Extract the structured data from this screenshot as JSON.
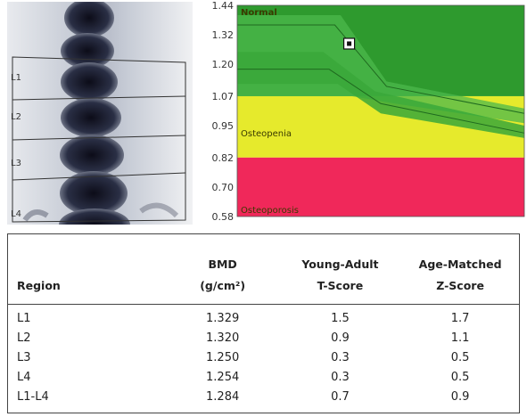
{
  "scan": {
    "vertebra_labels": [
      "L1",
      "L2",
      "L3",
      "L4"
    ]
  },
  "chart_data": {
    "type": "area",
    "title": "",
    "xlabel": "",
    "ylabel": "",
    "y_ticks": [
      "1.44",
      "1.32",
      "1.20",
      "1.07",
      "0.95",
      "0.82",
      "0.70",
      "0.58"
    ],
    "ylim": [
      0.58,
      1.44
    ],
    "zones": [
      {
        "name": "Normal",
        "from": 1.07,
        "to": 1.44,
        "color": "#2e9a2e"
      },
      {
        "name": "Osteopenia",
        "from": 0.82,
        "to": 1.07,
        "color": "#e6ea2c"
      },
      {
        "name": "Osteoporosis",
        "from": 0.58,
        "to": 0.82,
        "color": "#f0285a"
      }
    ],
    "patient_point": {
      "y": 1.284
    }
  },
  "table": {
    "headers": [
      [
        "Region"
      ],
      [
        "BMD",
        "(g/cm²)"
      ],
      [
        "Young-Adult",
        "T-Score"
      ],
      [
        "Age-Matched",
        "Z-Score"
      ]
    ],
    "rows": [
      [
        "L1",
        "1.329",
        "1.5",
        "1.7"
      ],
      [
        "L2",
        "1.320",
        "0.9",
        "1.1"
      ],
      [
        "L3",
        "1.250",
        "0.3",
        "0.5"
      ],
      [
        "L4",
        "1.254",
        "0.3",
        "0.5"
      ],
      [
        "L1-L4",
        "1.284",
        "0.7",
        "0.9"
      ]
    ]
  }
}
